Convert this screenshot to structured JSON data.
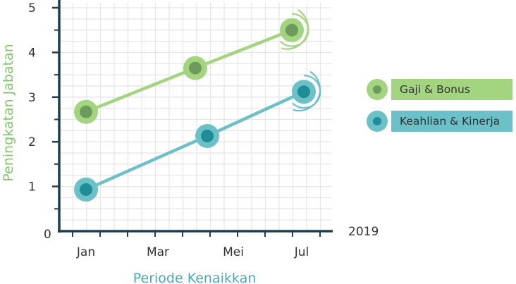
{
  "chart_data": {
    "type": "line",
    "title": "",
    "xlabel": "Periode Kenaikkan",
    "ylabel": "Peningkatan Jabatan",
    "x_ticks": [
      "Jan",
      "Mar",
      "Mei",
      "Jul"
    ],
    "y_ticks": [
      "0",
      "1",
      "2",
      "3",
      "4",
      "5"
    ],
    "ylim": [
      0,
      5.2
    ],
    "xlim": [
      0,
      7
    ],
    "year_label": "2019",
    "grid": true,
    "legend_position": "right",
    "series": [
      {
        "name": "Gaji & Bonus",
        "color": "#a3d47f",
        "inner_color": "#6e9a5c",
        "points": [
          {
            "x": 1,
            "y": 2.67
          },
          {
            "x": 4.7,
            "y": 3.65
          },
          {
            "x": 8.2,
            "y": 4.5
          }
        ]
      },
      {
        "name": "Keahlian & Kinerja",
        "color": "#6cc0c7",
        "inner_color": "#1e8d96",
        "points": [
          {
            "x": 1,
            "y": 0.93
          },
          {
            "x": 5.1,
            "y": 2.13
          },
          {
            "x": 8.5,
            "y": 3.12
          }
        ]
      }
    ]
  }
}
